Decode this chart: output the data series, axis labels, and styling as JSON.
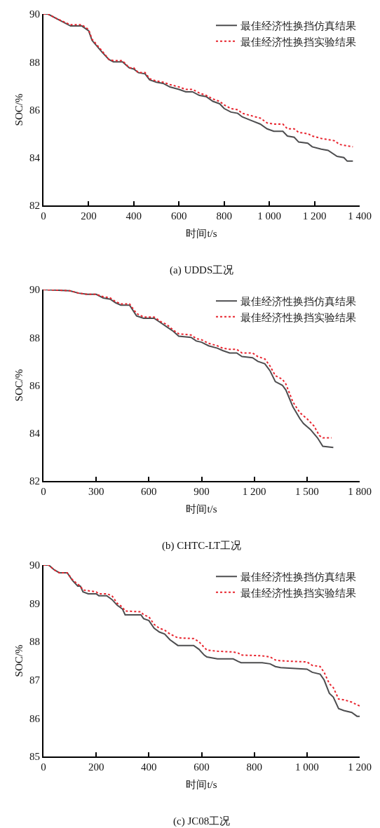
{
  "chart_data": [
    {
      "type": "line",
      "title": "(a) UDDS工况",
      "xlabel": "时间t/s",
      "ylabel": "SOC/%",
      "xlim": [
        0,
        1400
      ],
      "xticks": [
        0,
        200,
        400,
        600,
        800,
        {
          "value": 1000,
          "label": "1 000"
        },
        {
          "value": 1200,
          "label": "1 200"
        },
        {
          "value": 1400,
          "label": "1 400"
        }
      ],
      "ylim": [
        82,
        90
      ],
      "yticks": [
        82,
        84,
        86,
        88,
        90
      ],
      "legend": "top right",
      "series": [
        {
          "name": "最佳经济性换挡仿真结果",
          "color": "#4d4d4f",
          "line_style": "solid",
          "x": [
            0,
            20,
            60,
            120,
            170,
            200,
            215,
            260,
            290,
            310,
            350,
            380,
            400,
            420,
            450,
            470,
            500,
            530,
            560,
            600,
            630,
            660,
            690,
            720,
            750,
            780,
            800,
            830,
            860,
            880,
            920,
            960,
            990,
            1020,
            1060,
            1080,
            1110,
            1130,
            1170,
            1190,
            1230,
            1260,
            1300,
            1330,
            1345,
            1370
          ],
          "values": [
            90,
            90,
            89.8,
            89.5,
            89.5,
            89.3,
            88.9,
            88.4,
            88.1,
            88.0,
            88.0,
            87.75,
            87.7,
            87.55,
            87.5,
            87.25,
            87.15,
            87.1,
            86.95,
            86.85,
            86.75,
            86.75,
            86.6,
            86.55,
            86.35,
            86.25,
            86.05,
            85.9,
            85.85,
            85.7,
            85.55,
            85.4,
            85.2,
            85.1,
            85.1,
            84.9,
            84.85,
            84.65,
            84.6,
            84.45,
            84.35,
            84.3,
            84.05,
            84.0,
            83.85,
            83.85
          ]
        },
        {
          "name": "最佳经济性换挡实验结果",
          "color": "#e8242e",
          "line_style": "dotted",
          "x": [
            0,
            20,
            60,
            120,
            170,
            200,
            215,
            260,
            290,
            310,
            350,
            380,
            400,
            420,
            450,
            470,
            500,
            530,
            560,
            600,
            630,
            660,
            690,
            720,
            750,
            780,
            800,
            830,
            860,
            880,
            920,
            960,
            990,
            1020,
            1060,
            1080,
            1110,
            1130,
            1170,
            1190,
            1230,
            1260,
            1290,
            1310,
            1340,
            1370
          ],
          "values": [
            90,
            90,
            89.8,
            89.55,
            89.55,
            89.35,
            88.95,
            88.45,
            88.1,
            88.05,
            88.05,
            87.75,
            87.75,
            87.55,
            87.55,
            87.3,
            87.2,
            87.15,
            87.05,
            86.95,
            86.85,
            86.85,
            86.7,
            86.6,
            86.45,
            86.35,
            86.2,
            86.05,
            86.0,
            85.85,
            85.75,
            85.65,
            85.45,
            85.4,
            85.4,
            85.2,
            85.2,
            85.05,
            85.0,
            84.9,
            84.8,
            84.75,
            84.7,
            84.55,
            84.5,
            84.45
          ]
        }
      ]
    },
    {
      "type": "line",
      "title": "(b) CHTC-LT工况",
      "xlabel": "时间t/s",
      "ylabel": "SOC/%",
      "xlim": [
        0,
        1800
      ],
      "xticks": [
        0,
        300,
        600,
        900,
        {
          "value": 1200,
          "label": "1 200"
        },
        {
          "value": 1500,
          "label": "1 500"
        },
        {
          "value": 1800,
          "label": "1 800"
        }
      ],
      "ylim": [
        82,
        90
      ],
      "yticks": [
        82,
        84,
        86,
        88,
        90
      ],
      "legend": "top right",
      "series": [
        {
          "name": "最佳经济性换挡仿真结果",
          "color": "#4d4d4f",
          "line_style": "solid",
          "x": [
            0,
            150,
            200,
            250,
            300,
            340,
            380,
            410,
            440,
            490,
            530,
            570,
            630,
            670,
            700,
            740,
            770,
            840,
            870,
            900,
            940,
            990,
            1020,
            1060,
            1100,
            1130,
            1190,
            1220,
            1260,
            1290,
            1320,
            1360,
            1380,
            1420,
            1460,
            1480,
            1520,
            1560,
            1590,
            1650
          ],
          "values": [
            90,
            89.95,
            89.85,
            89.8,
            89.8,
            89.65,
            89.6,
            89.45,
            89.35,
            89.35,
            88.9,
            88.8,
            88.8,
            88.6,
            88.45,
            88.25,
            88.05,
            88.0,
            87.85,
            87.8,
            87.65,
            87.55,
            87.45,
            87.35,
            87.35,
            87.2,
            87.15,
            87.0,
            86.9,
            86.6,
            86.15,
            86.0,
            85.8,
            85.1,
            84.6,
            84.4,
            84.15,
            83.8,
            83.45,
            83.4
          ]
        },
        {
          "name": "最佳经济性换挡实验结果",
          "color": "#e8242e",
          "line_style": "dotted",
          "x": [
            0,
            150,
            200,
            250,
            300,
            340,
            380,
            410,
            440,
            490,
            530,
            570,
            630,
            670,
            700,
            740,
            770,
            840,
            870,
            900,
            940,
            990,
            1020,
            1060,
            1100,
            1130,
            1190,
            1220,
            1260,
            1290,
            1320,
            1360,
            1380,
            1420,
            1460,
            1500,
            1540,
            1570,
            1590,
            1640
          ],
          "values": [
            90,
            89.95,
            89.85,
            89.8,
            89.8,
            89.7,
            89.65,
            89.5,
            89.4,
            89.4,
            89.0,
            88.85,
            88.85,
            88.65,
            88.55,
            88.3,
            88.15,
            88.1,
            87.95,
            87.9,
            87.75,
            87.65,
            87.55,
            87.5,
            87.5,
            87.35,
            87.35,
            87.2,
            87.1,
            86.8,
            86.4,
            86.25,
            86.05,
            85.3,
            84.85,
            84.6,
            84.3,
            83.9,
            83.8,
            83.8
          ]
        }
      ]
    },
    {
      "type": "line",
      "title": "(c) JC08工况",
      "xlabel": "时间t/s",
      "ylabel": "SOC/%",
      "xlim": [
        0,
        1200
      ],
      "xticks": [
        0,
        200,
        400,
        600,
        800,
        {
          "value": 1000,
          "label": "1 000"
        },
        {
          "value": 1200,
          "label": "1 200"
        }
      ],
      "ylim": [
        85,
        90
      ],
      "yticks": [
        85,
        86,
        87,
        88,
        89,
        90
      ],
      "legend": "top right",
      "series": [
        {
          "name": "最佳经济性换挡仿真结果",
          "color": "#4d4d4f",
          "line_style": "solid",
          "x": [
            0,
            20,
            40,
            60,
            90,
            110,
            130,
            140,
            150,
            170,
            200,
            210,
            240,
            260,
            280,
            300,
            310,
            370,
            380,
            400,
            420,
            440,
            460,
            480,
            510,
            570,
            590,
            610,
            620,
            660,
            720,
            740,
            750,
            830,
            860,
            880,
            900,
            1000,
            1020,
            1050,
            1065,
            1085,
            1100,
            1120,
            1140,
            1170,
            1190,
            1200
          ],
          "values": [
            90,
            90,
            89.88,
            89.8,
            89.8,
            89.6,
            89.45,
            89.45,
            89.3,
            89.25,
            89.25,
            89.2,
            89.2,
            89.1,
            88.95,
            88.85,
            88.7,
            88.7,
            88.6,
            88.55,
            88.35,
            88.25,
            88.2,
            88.05,
            87.9,
            87.9,
            87.8,
            87.65,
            87.6,
            87.55,
            87.55,
            87.48,
            87.45,
            87.45,
            87.42,
            87.35,
            87.32,
            87.28,
            87.2,
            87.15,
            87.0,
            86.65,
            86.55,
            86.25,
            86.2,
            86.15,
            86.05,
            86.05
          ]
        },
        {
          "name": "最佳经济性换挡实验结果",
          "color": "#e8242e",
          "line_style": "dotted",
          "x": [
            0,
            20,
            40,
            60,
            90,
            110,
            130,
            140,
            150,
            170,
            200,
            210,
            240,
            260,
            280,
            300,
            310,
            370,
            380,
            400,
            420,
            440,
            460,
            480,
            510,
            570,
            590,
            610,
            620,
            660,
            720,
            740,
            750,
            830,
            860,
            880,
            900,
            1000,
            1020,
            1050,
            1065,
            1085,
            1100,
            1120,
            1140,
            1170,
            1190,
            1200
          ],
          "values": [
            90,
            90,
            89.88,
            89.8,
            89.8,
            89.62,
            89.5,
            89.45,
            89.35,
            89.33,
            89.3,
            89.25,
            89.25,
            89.2,
            89.0,
            88.9,
            88.8,
            88.78,
            88.7,
            88.65,
            88.45,
            88.35,
            88.3,
            88.2,
            88.1,
            88.08,
            88.0,
            87.85,
            87.78,
            87.75,
            87.73,
            87.7,
            87.65,
            87.63,
            87.6,
            87.52,
            87.5,
            87.47,
            87.38,
            87.35,
            87.2,
            86.9,
            86.8,
            86.5,
            86.48,
            86.42,
            86.35,
            86.32
          ]
        }
      ]
    }
  ]
}
